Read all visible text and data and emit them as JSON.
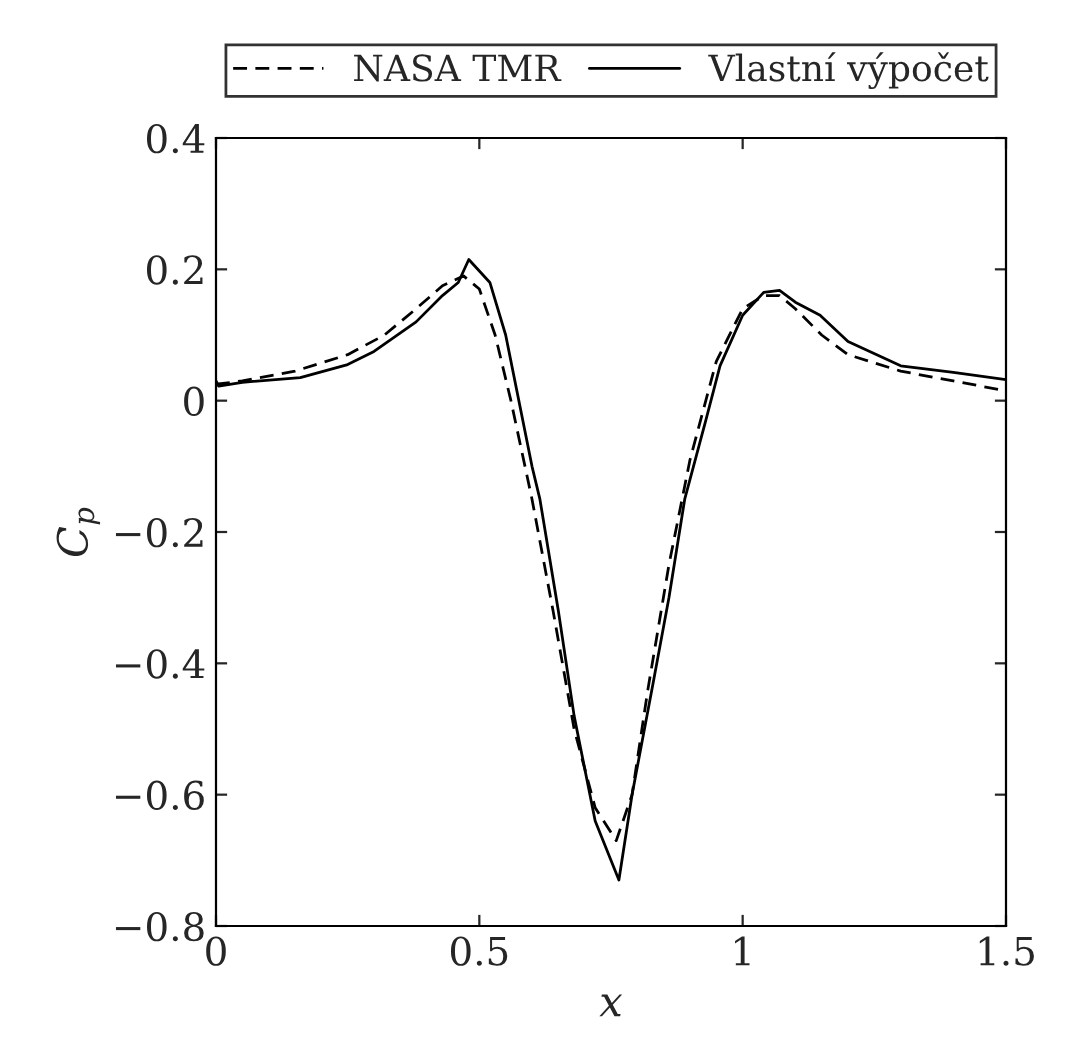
{
  "chart_data": {
    "type": "line",
    "xlabel": "x",
    "ylabel": "C$_{p}$",
    "xlim": [
      0,
      1.5
    ],
    "ylim": [
      -0.8,
      0.4
    ],
    "xticks": [
      0,
      0.5,
      1,
      1.5
    ],
    "yticks": [
      {
        "value": -0.8,
        "label": "−0.8"
      },
      {
        "value": -0.6,
        "label": "−0.6"
      },
      {
        "value": -0.4,
        "label": "−0.4"
      },
      {
        "value": -0.2,
        "label": "−0.2"
      },
      0,
      0.2,
      0.4
    ],
    "legend": "top",
    "grid": false,
    "series": [
      {
        "name": "NASA TMR",
        "color": "#000000",
        "line_style": "dashed",
        "x": [
          0,
          0.05,
          0.15,
          0.25,
          0.32,
          0.38,
          0.43,
          0.47,
          0.5,
          0.53,
          0.56,
          0.6,
          0.64,
          0.68,
          0.72,
          0.76,
          0.79,
          0.82,
          0.86,
          0.9,
          0.95,
          1.0,
          1.04,
          1.07,
          1.1,
          1.15,
          1.2,
          1.3,
          1.4,
          1.5
        ],
        "values": [
          0.025,
          0.03,
          0.045,
          0.07,
          0.1,
          0.14,
          0.175,
          0.19,
          0.17,
          0.1,
          0.0,
          -0.15,
          -0.32,
          -0.5,
          -0.62,
          -0.67,
          -0.6,
          -0.44,
          -0.25,
          -0.09,
          0.06,
          0.14,
          0.16,
          0.16,
          0.14,
          0.1,
          0.07,
          0.045,
          0.03,
          0.015
        ]
      },
      {
        "name": "Vlastní výpočet",
        "color": "#000000",
        "line_style": "solid",
        "x": [
          0,
          0.005,
          0.05,
          0.16,
          0.25,
          0.3,
          0.38,
          0.43,
          0.46,
          0.48,
          0.52,
          0.55,
          0.6,
          0.615,
          0.65,
          0.68,
          0.72,
          0.765,
          0.79,
          0.83,
          0.86,
          0.89,
          0.93,
          0.957,
          1.0,
          1.04,
          1.07,
          1.1,
          1.147,
          1.2,
          1.3,
          1.4,
          1.5
        ],
        "values": [
          0.03,
          0.022,
          0.028,
          0.035,
          0.055,
          0.075,
          0.12,
          0.16,
          0.18,
          0.215,
          0.18,
          0.1,
          -0.1,
          -0.15,
          -0.32,
          -0.48,
          -0.64,
          -0.73,
          -0.6,
          -0.43,
          -0.3,
          -0.15,
          -0.03,
          0.053,
          0.13,
          0.165,
          0.168,
          0.15,
          0.13,
          0.09,
          0.053,
          0.043,
          0.032
        ]
      }
    ]
  }
}
